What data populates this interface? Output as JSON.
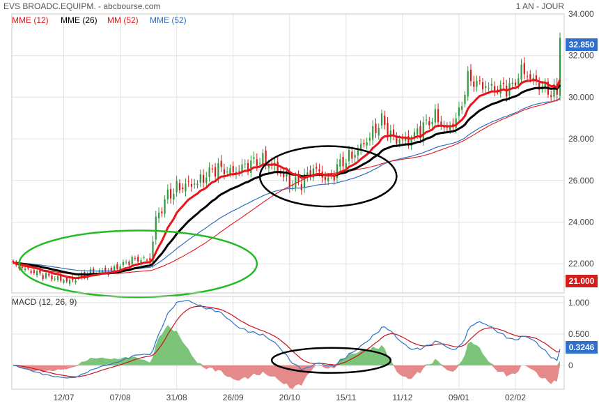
{
  "header": {
    "title": "EVS BROADC.EQUIPM. - abcbourse.com",
    "period": "1 AN - JOUR"
  },
  "colors": {
    "bg": "#ffffff",
    "grid": "#e3e3e3",
    "frame": "#c8c8c8",
    "ema12": "#e8161b",
    "ema26": "#000000",
    "sma52": "#e8161b",
    "ema52": "#2f6fbf",
    "candle_up": "#2e9a3a",
    "candle_down": "#d41c1c",
    "macd": "#2f72c8",
    "signal": "#c4151c",
    "hist_pos": "#7cc47a",
    "hist_neg": "#e58a8a",
    "last_badge": "#2f6fd0",
    "low_badge": "#d41c1c",
    "circle_green": "#22bb22",
    "circle_black": "#000000"
  },
  "chart_data": [
    {
      "type": "candlestick",
      "title": "EVS BROADC.EQUIPM.",
      "legend": [
        "MME (12)",
        "MME (26)",
        "MM (52)",
        "MME (52)"
      ],
      "x_ticks": [
        "12/07",
        "07/08",
        "31/08",
        "26/09",
        "20/10",
        "15/11",
        "11/12",
        "09/01",
        "02/02"
      ],
      "x_tick_index": [
        17,
        36,
        55,
        74,
        93,
        112,
        131,
        150,
        169
      ],
      "y_ticks": [
        "34.000",
        "32.000",
        "30.000",
        "28.000",
        "26.000",
        "24.000",
        "22.000"
      ],
      "ylim": [
        20.6,
        34.0
      ],
      "last_price": "32.850",
      "low_label": "21.000",
      "n_sessions": 185,
      "close_anchors": [
        [
          0,
          21.95
        ],
        [
          10,
          21.45
        ],
        [
          19,
          21.15
        ],
        [
          25,
          21.55
        ],
        [
          33,
          21.7
        ],
        [
          40,
          22.2
        ],
        [
          46,
          22.2
        ],
        [
          48,
          24.1
        ],
        [
          52,
          25.3
        ],
        [
          56,
          25.7
        ],
        [
          62,
          25.9
        ],
        [
          68,
          26.6
        ],
        [
          74,
          26.4
        ],
        [
          78,
          26.7
        ],
        [
          83,
          27.0
        ],
        [
          88,
          26.7
        ],
        [
          93,
          25.9
        ],
        [
          97,
          25.9
        ],
        [
          101,
          26.6
        ],
        [
          106,
          26.0
        ],
        [
          110,
          26.8
        ],
        [
          115,
          27.3
        ],
        [
          120,
          28.1
        ],
        [
          124,
          28.9
        ],
        [
          128,
          28.0
        ],
        [
          133,
          27.9
        ],
        [
          138,
          28.6
        ],
        [
          142,
          29.1
        ],
        [
          146,
          28.4
        ],
        [
          150,
          29.2
        ],
        [
          153,
          30.9
        ],
        [
          157,
          30.6
        ],
        [
          162,
          30.4
        ],
        [
          168,
          30.5
        ],
        [
          171,
          31.3
        ],
        [
          176,
          30.7
        ],
        [
          180,
          30.3
        ],
        [
          183,
          30.2
        ],
        [
          184,
          32.85
        ]
      ],
      "highlight_circles": [
        {
          "label": "green",
          "center_index": 42,
          "center_value": 22.0,
          "rx_sessions": 40,
          "ry_value": 1.6
        },
        {
          "label": "black",
          "center_index": 106,
          "center_value": 26.2,
          "rx_sessions": 23,
          "ry_value": 1.45
        }
      ]
    },
    {
      "type": "macd",
      "title": "MACD (12, 26, 9)",
      "params": [
        12,
        26,
        9
      ],
      "y_ticks": [
        "1.000",
        "0.500",
        "0"
      ],
      "ylim": [
        -0.38,
        1.1
      ],
      "last_value": "0.3246",
      "highlight_circles": [
        {
          "label": "black",
          "center_index": 107,
          "center_value": 0.08,
          "rx_sessions": 5,
          "ry_value": 0.2
        }
      ]
    }
  ]
}
